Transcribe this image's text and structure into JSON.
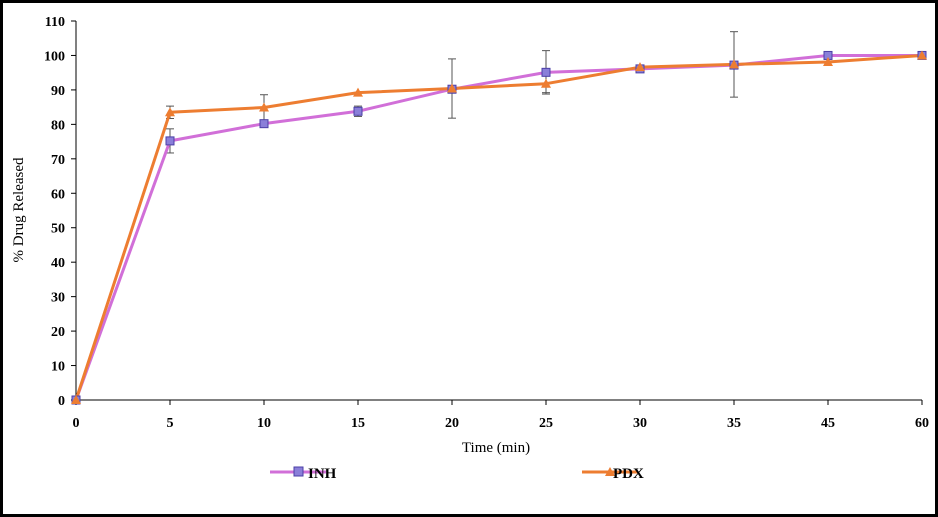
{
  "chart_data": {
    "type": "line",
    "title": "",
    "xlabel": "Time (min)",
    "ylabel": "% Drug Released",
    "ylim": [
      0,
      110
    ],
    "yticks": [
      "0",
      "10",
      "20",
      "30",
      "40",
      "50",
      "60",
      "70",
      "80",
      "90",
      "100",
      "110"
    ],
    "categories": [
      "0",
      "5",
      "10",
      "15",
      "20",
      "25",
      "30",
      "35",
      "45",
      "60"
    ],
    "grid": false,
    "legend_position": "bottom",
    "series": [
      {
        "name": "INH",
        "color": "#d16fd8",
        "marker": "square",
        "marker_color": "#8a7fd9",
        "values": [
          0,
          75.2,
          80.2,
          83.8,
          90.2,
          95.1,
          96.1,
          97.2,
          100.0,
          100.0
        ],
        "error": [
          0,
          3.5,
          0,
          1.5,
          0,
          6.3,
          0,
          0,
          0,
          0
        ]
      },
      {
        "name": "PDX",
        "color": "#ed7d31",
        "marker": "triangle",
        "marker_color": "#ed7d31",
        "values": [
          0,
          83.5,
          84.9,
          89.2,
          90.4,
          91.8,
          96.6,
          97.4,
          98.1,
          100.0
        ],
        "error": [
          0,
          1.8,
          3.7,
          0,
          8.6,
          2.6,
          0,
          9.5,
          0,
          0
        ]
      }
    ]
  }
}
